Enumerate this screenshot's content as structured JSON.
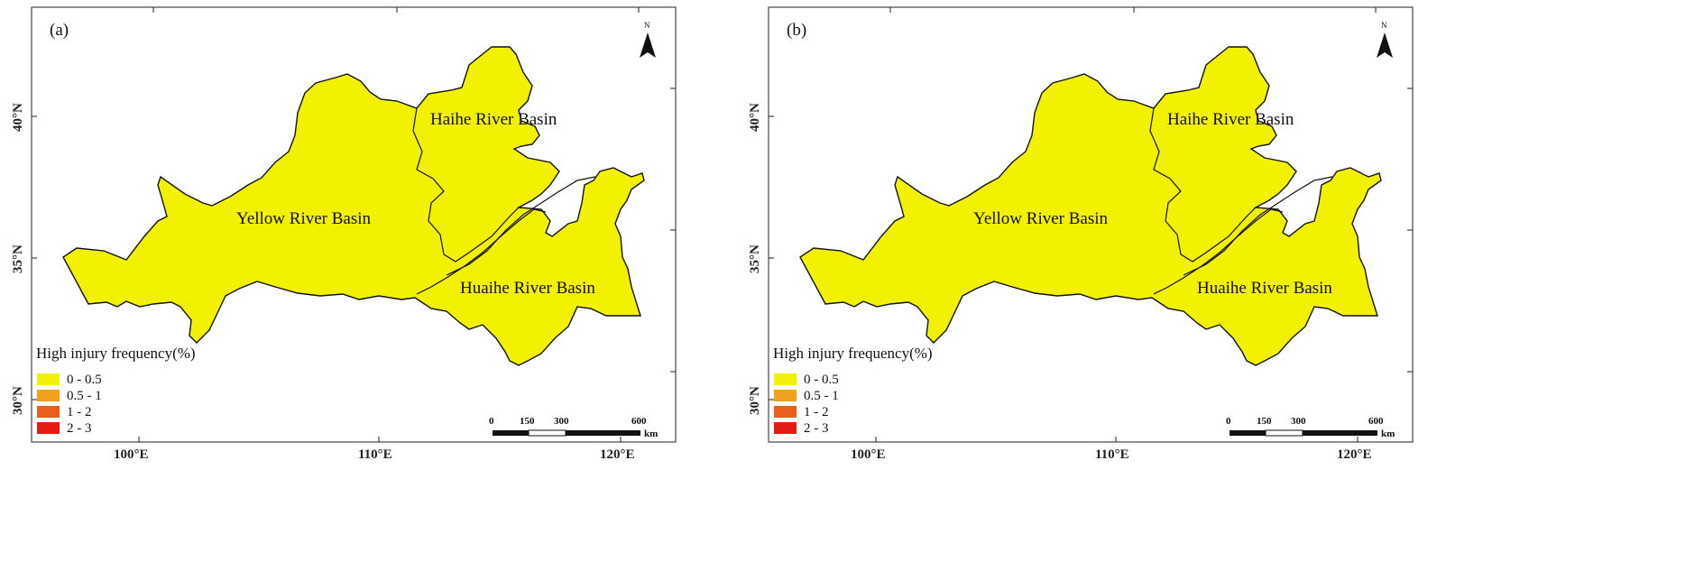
{
  "colors": {
    "class_0": "#f2f200",
    "class_1": "#f0a21e",
    "class_2": "#e8601c",
    "class_3": "#e51a12",
    "border": "#111111"
  },
  "legend": {
    "title": "High injury frequency(%)",
    "items": [
      {
        "label": "0 - 0.5",
        "color": "#f2f200"
      },
      {
        "label": "0.5 - 1",
        "color": "#f0a21e"
      },
      {
        "label": "1 - 2",
        "color": "#e8601c"
      },
      {
        "label": "2 - 3",
        "color": "#e51a12"
      }
    ]
  },
  "axes": {
    "x_ticks": [
      "100°E",
      "110°E",
      "120°E"
    ],
    "y_ticks": [
      "40°N",
      "35°N",
      "30°N"
    ]
  },
  "scale_bar": {
    "labels": [
      "0",
      "150",
      "300",
      "600"
    ],
    "unit": "km"
  },
  "north_arrow": {
    "letter": "N",
    "icon": "north-arrow-icon"
  },
  "basins": {
    "yellow": "Yellow River Basin",
    "haihe": "Haihe River Basin",
    "huaihe": "Huaihe River Basin"
  },
  "panels": [
    {
      "label": "(a)"
    },
    {
      "label": "(b)"
    }
  ]
}
